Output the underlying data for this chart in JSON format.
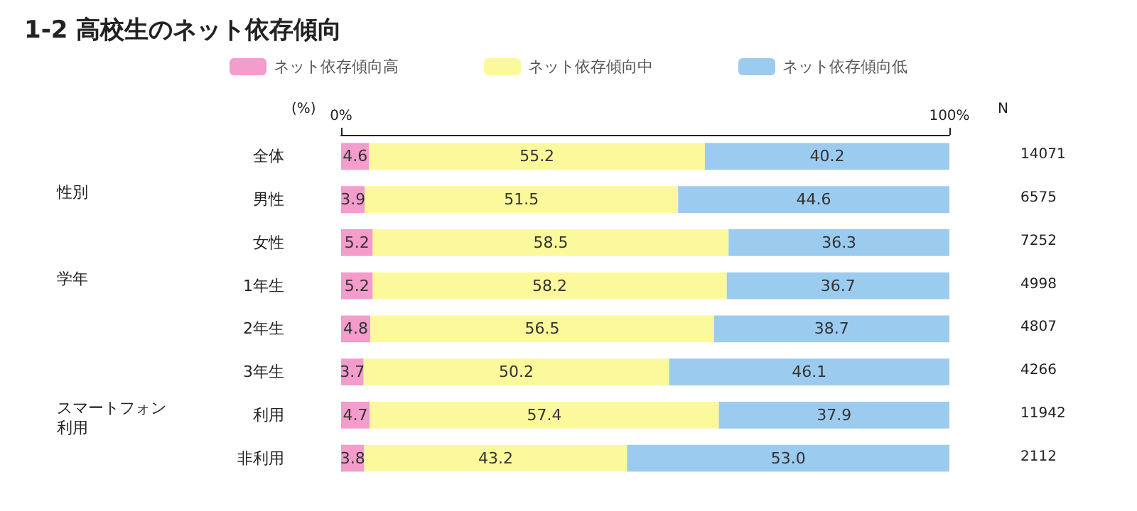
{
  "chart_data": {
    "type": "bar",
    "title": "1-2 高校生のネット依存傾向",
    "orientation": "horizontal",
    "stacked": true,
    "categories": [
      "全体",
      "男性",
      "女性",
      "1年生",
      "2年生",
      "3年生",
      "利用",
      "非利用"
    ],
    "series": [
      {
        "name": "ネット依存傾向高",
        "color": "#f49ccb",
        "values": [
          4.6,
          3.9,
          5.2,
          5.2,
          4.8,
          3.7,
          4.7,
          3.8
        ],
        "value_labels": [
          "4.6",
          "3.9",
          "5.2",
          "5.2",
          "4.8",
          "3.7",
          "4.7",
          "3.8"
        ]
      },
      {
        "name": "ネット依存傾向中",
        "color": "#fcf99c",
        "values": [
          55.2,
          51.5,
          58.5,
          58.2,
          56.5,
          50.2,
          57.4,
          43.2
        ],
        "value_labels": [
          "55.2",
          "51.5",
          "58.5",
          "58.2",
          "56.5",
          "50.2",
          "57.4",
          "43.2"
        ]
      },
      {
        "name": "ネット依存傾向低",
        "color": "#9ccbf0",
        "values": [
          40.2,
          44.6,
          36.3,
          36.7,
          38.7,
          46.1,
          37.9,
          53.0
        ],
        "value_labels": [
          "40.2",
          "44.6",
          "36.3",
          "36.7",
          "38.7",
          "46.1",
          "37.9",
          "53.0"
        ]
      }
    ],
    "xlim": [
      0,
      100
    ],
    "xticks": [
      {
        "value": 0,
        "label": "0%"
      },
      {
        "value": 100,
        "label": "100%"
      }
    ],
    "legend": "top",
    "grid": false,
    "annotations": [
      "(%)",
      "N",
      "14071",
      "6575",
      "7252",
      "4998",
      "4807",
      "4266",
      "11942",
      "2112",
      "性別",
      "学年",
      "スマートフォン利用"
    ]
  }
}
